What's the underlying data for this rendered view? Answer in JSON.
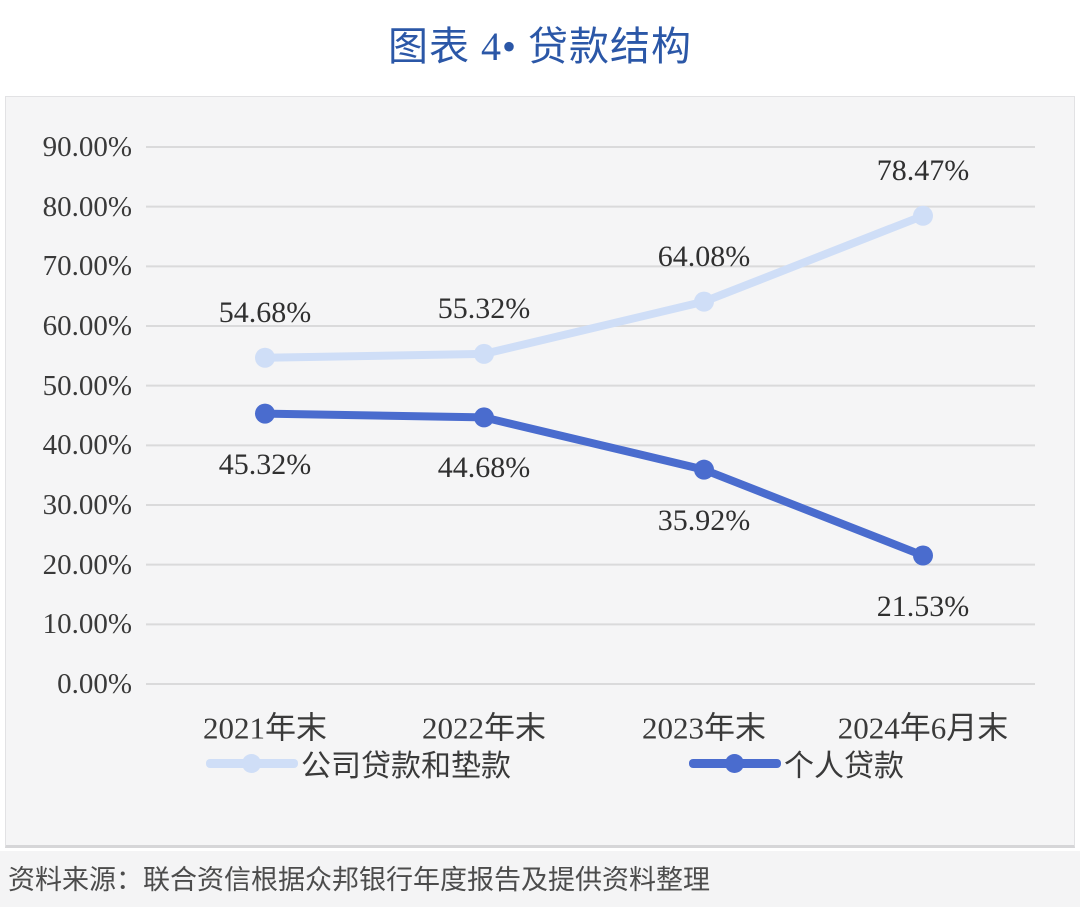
{
  "title": "图表 4• 贷款结构",
  "source": "资料来源：联合资信根据众邦银行年度报告及提供资料整理",
  "colors": {
    "title_blue": "#2b57a7",
    "company_series": "#cfdef7",
    "personal_series": "#4a6cce",
    "gridline": "#dadadb",
    "panel_background": "#f5f5f6",
    "label_text": "#303030"
  },
  "chart_data": {
    "type": "line",
    "title": "图表 4• 贷款结构",
    "categories": [
      "2021年末",
      "2022年末",
      "2023年末",
      "2024年6月末"
    ],
    "series": [
      {
        "name": "公司贷款和垫款",
        "values": [
          54.68,
          55.32,
          64.08,
          78.47
        ],
        "labels": [
          "54.68%",
          "55.32%",
          "64.08%",
          "78.47%"
        ],
        "color": "#cfdef7",
        "label_position": "above"
      },
      {
        "name": "个人贷款",
        "values": [
          45.32,
          44.68,
          35.92,
          21.53
        ],
        "labels": [
          "45.32%",
          "44.68%",
          "35.92%",
          "21.53%"
        ],
        "color": "#4a6cce",
        "label_position": "below"
      }
    ],
    "ylim": [
      0,
      90
    ],
    "ytick_step": 10,
    "yticks": [
      "0.00%",
      "10.00%",
      "20.00%",
      "30.00%",
      "40.00%",
      "50.00%",
      "60.00%",
      "70.00%",
      "80.00%",
      "90.00%"
    ],
    "grid": "horizontal-only",
    "legend_position": "bottom",
    "marker": "circle"
  }
}
